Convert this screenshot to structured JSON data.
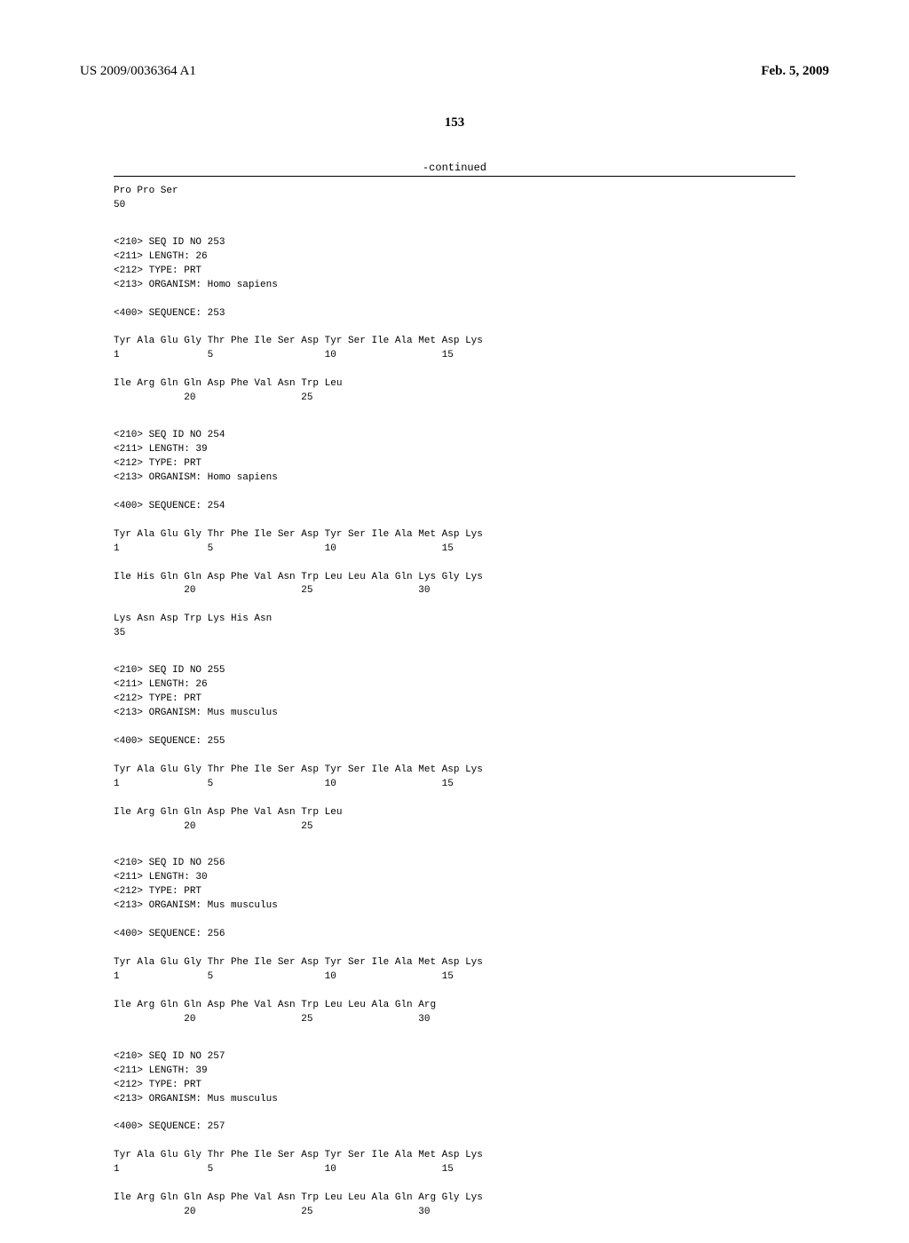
{
  "header": {
    "pub_number": "US 2009/0036364 A1",
    "pub_date": "Feb. 5, 2009"
  },
  "page_number": "153",
  "continued_label": "-continued",
  "blocks": [
    {
      "lines": [
        "Pro Pro Ser",
        "50"
      ]
    },
    {
      "lines": [
        "<210> SEQ ID NO 253",
        "<211> LENGTH: 26",
        "<212> TYPE: PRT",
        "<213> ORGANISM: Homo sapiens",
        "",
        "<400> SEQUENCE: 253",
        "",
        "Tyr Ala Glu Gly Thr Phe Ile Ser Asp Tyr Ser Ile Ala Met Asp Lys",
        "1               5                   10                  15",
        "",
        "Ile Arg Gln Gln Asp Phe Val Asn Trp Leu",
        "            20                  25"
      ]
    },
    {
      "lines": [
        "<210> SEQ ID NO 254",
        "<211> LENGTH: 39",
        "<212> TYPE: PRT",
        "<213> ORGANISM: Homo sapiens",
        "",
        "<400> SEQUENCE: 254",
        "",
        "Tyr Ala Glu Gly Thr Phe Ile Ser Asp Tyr Ser Ile Ala Met Asp Lys",
        "1               5                   10                  15",
        "",
        "Ile His Gln Gln Asp Phe Val Asn Trp Leu Leu Ala Gln Lys Gly Lys",
        "            20                  25                  30",
        "",
        "Lys Asn Asp Trp Lys His Asn",
        "35"
      ]
    },
    {
      "lines": [
        "<210> SEQ ID NO 255",
        "<211> LENGTH: 26",
        "<212> TYPE: PRT",
        "<213> ORGANISM: Mus musculus",
        "",
        "<400> SEQUENCE: 255",
        "",
        "Tyr Ala Glu Gly Thr Phe Ile Ser Asp Tyr Ser Ile Ala Met Asp Lys",
        "1               5                   10                  15",
        "",
        "Ile Arg Gln Gln Asp Phe Val Asn Trp Leu",
        "            20                  25"
      ]
    },
    {
      "lines": [
        "<210> SEQ ID NO 256",
        "<211> LENGTH: 30",
        "<212> TYPE: PRT",
        "<213> ORGANISM: Mus musculus",
        "",
        "<400> SEQUENCE: 256",
        "",
        "Tyr Ala Glu Gly Thr Phe Ile Ser Asp Tyr Ser Ile Ala Met Asp Lys",
        "1               5                   10                  15",
        "",
        "Ile Arg Gln Gln Asp Phe Val Asn Trp Leu Leu Ala Gln Arg",
        "            20                  25                  30"
      ]
    },
    {
      "lines": [
        "<210> SEQ ID NO 257",
        "<211> LENGTH: 39",
        "<212> TYPE: PRT",
        "<213> ORGANISM: Mus musculus",
        "",
        "<400> SEQUENCE: 257",
        "",
        "Tyr Ala Glu Gly Thr Phe Ile Ser Asp Tyr Ser Ile Ala Met Asp Lys",
        "1               5                   10                  15",
        "",
        "Ile Arg Gln Gln Asp Phe Val Asn Trp Leu Leu Ala Gln Arg Gly Lys",
        "            20                  25                  30"
      ]
    }
  ]
}
